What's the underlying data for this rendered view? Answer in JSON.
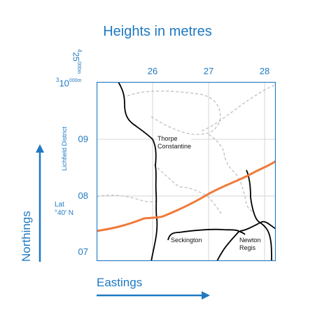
{
  "title": "Heights in metres",
  "top_ticks": [
    "26",
    "27",
    "28"
  ],
  "left_ticks": [
    "09",
    "08",
    "07"
  ],
  "corner": {
    "easting_prefix": "4",
    "easting_value": "25",
    "easting_unit": "000m",
    "northing_prefix": "3",
    "northing_value": "10",
    "northing_unit": "000m"
  },
  "district_label": "Lichfield District",
  "lat_label_line1": "Lat",
  "lat_label_line2": "°40′ N",
  "places": {
    "thorpe_line1": "Thorpe",
    "thorpe_line2": "Constantine",
    "seckington": "Seckington",
    "newton_line1": "Newton",
    "newton_line2": "Regis"
  },
  "axis_labels": {
    "northings": "Northings",
    "eastings": "Eastings"
  },
  "colors": {
    "accent": "#1f79c2",
    "road": "#f07a3a",
    "boundary": "#000000",
    "footpath": "#b9b9c4",
    "grid": "#d6d6d6"
  }
}
